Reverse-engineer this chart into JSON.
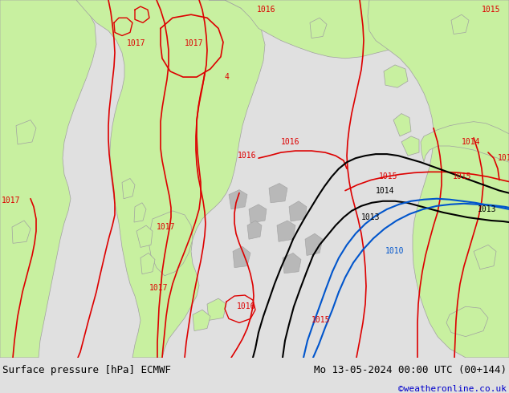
{
  "title_left": "Surface pressure [hPa] ECMWF",
  "title_right": "Mo 13-05-2024 00:00 UTC (00+144)",
  "credit": "©weatheronline.co.uk",
  "bg_color": "#e0e0e0",
  "land_green_color": "#c8f0a0",
  "coast_color": "#a0a0a0",
  "contour_red_color": "#dd0000",
  "contour_black_color": "#000000",
  "contour_blue_color": "#0055cc",
  "figsize": [
    6.34,
    4.9
  ],
  "dpi": 100,
  "bottom_bar_color": "#d8d8d8",
  "credit_color": "#0000cc",
  "font_size_bottom": 9,
  "font_size_labels": 7
}
